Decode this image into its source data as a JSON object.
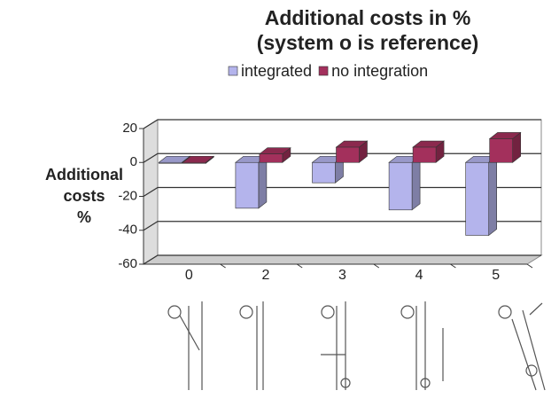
{
  "chart_data": {
    "type": "bar3d",
    "title": [
      "Additional costs in %",
      "(system o is reference)"
    ],
    "y_label": [
      "Additional",
      "costs",
      "%"
    ],
    "categories": [
      "0",
      "2",
      "3",
      "4",
      "5"
    ],
    "series": [
      {
        "name": "integrated",
        "color": "#b4b4ec",
        "values": [
          0,
          -27,
          -12,
          -28,
          -43
        ]
      },
      {
        "name": "no integration",
        "color": "#a3305c",
        "values": [
          0,
          5,
          9,
          9,
          14
        ]
      }
    ],
    "ylim": [
      -60,
      20
    ],
    "yticks": [
      20,
      0,
      -20,
      -40,
      -60
    ],
    "grid": true,
    "legend": "top"
  }
}
